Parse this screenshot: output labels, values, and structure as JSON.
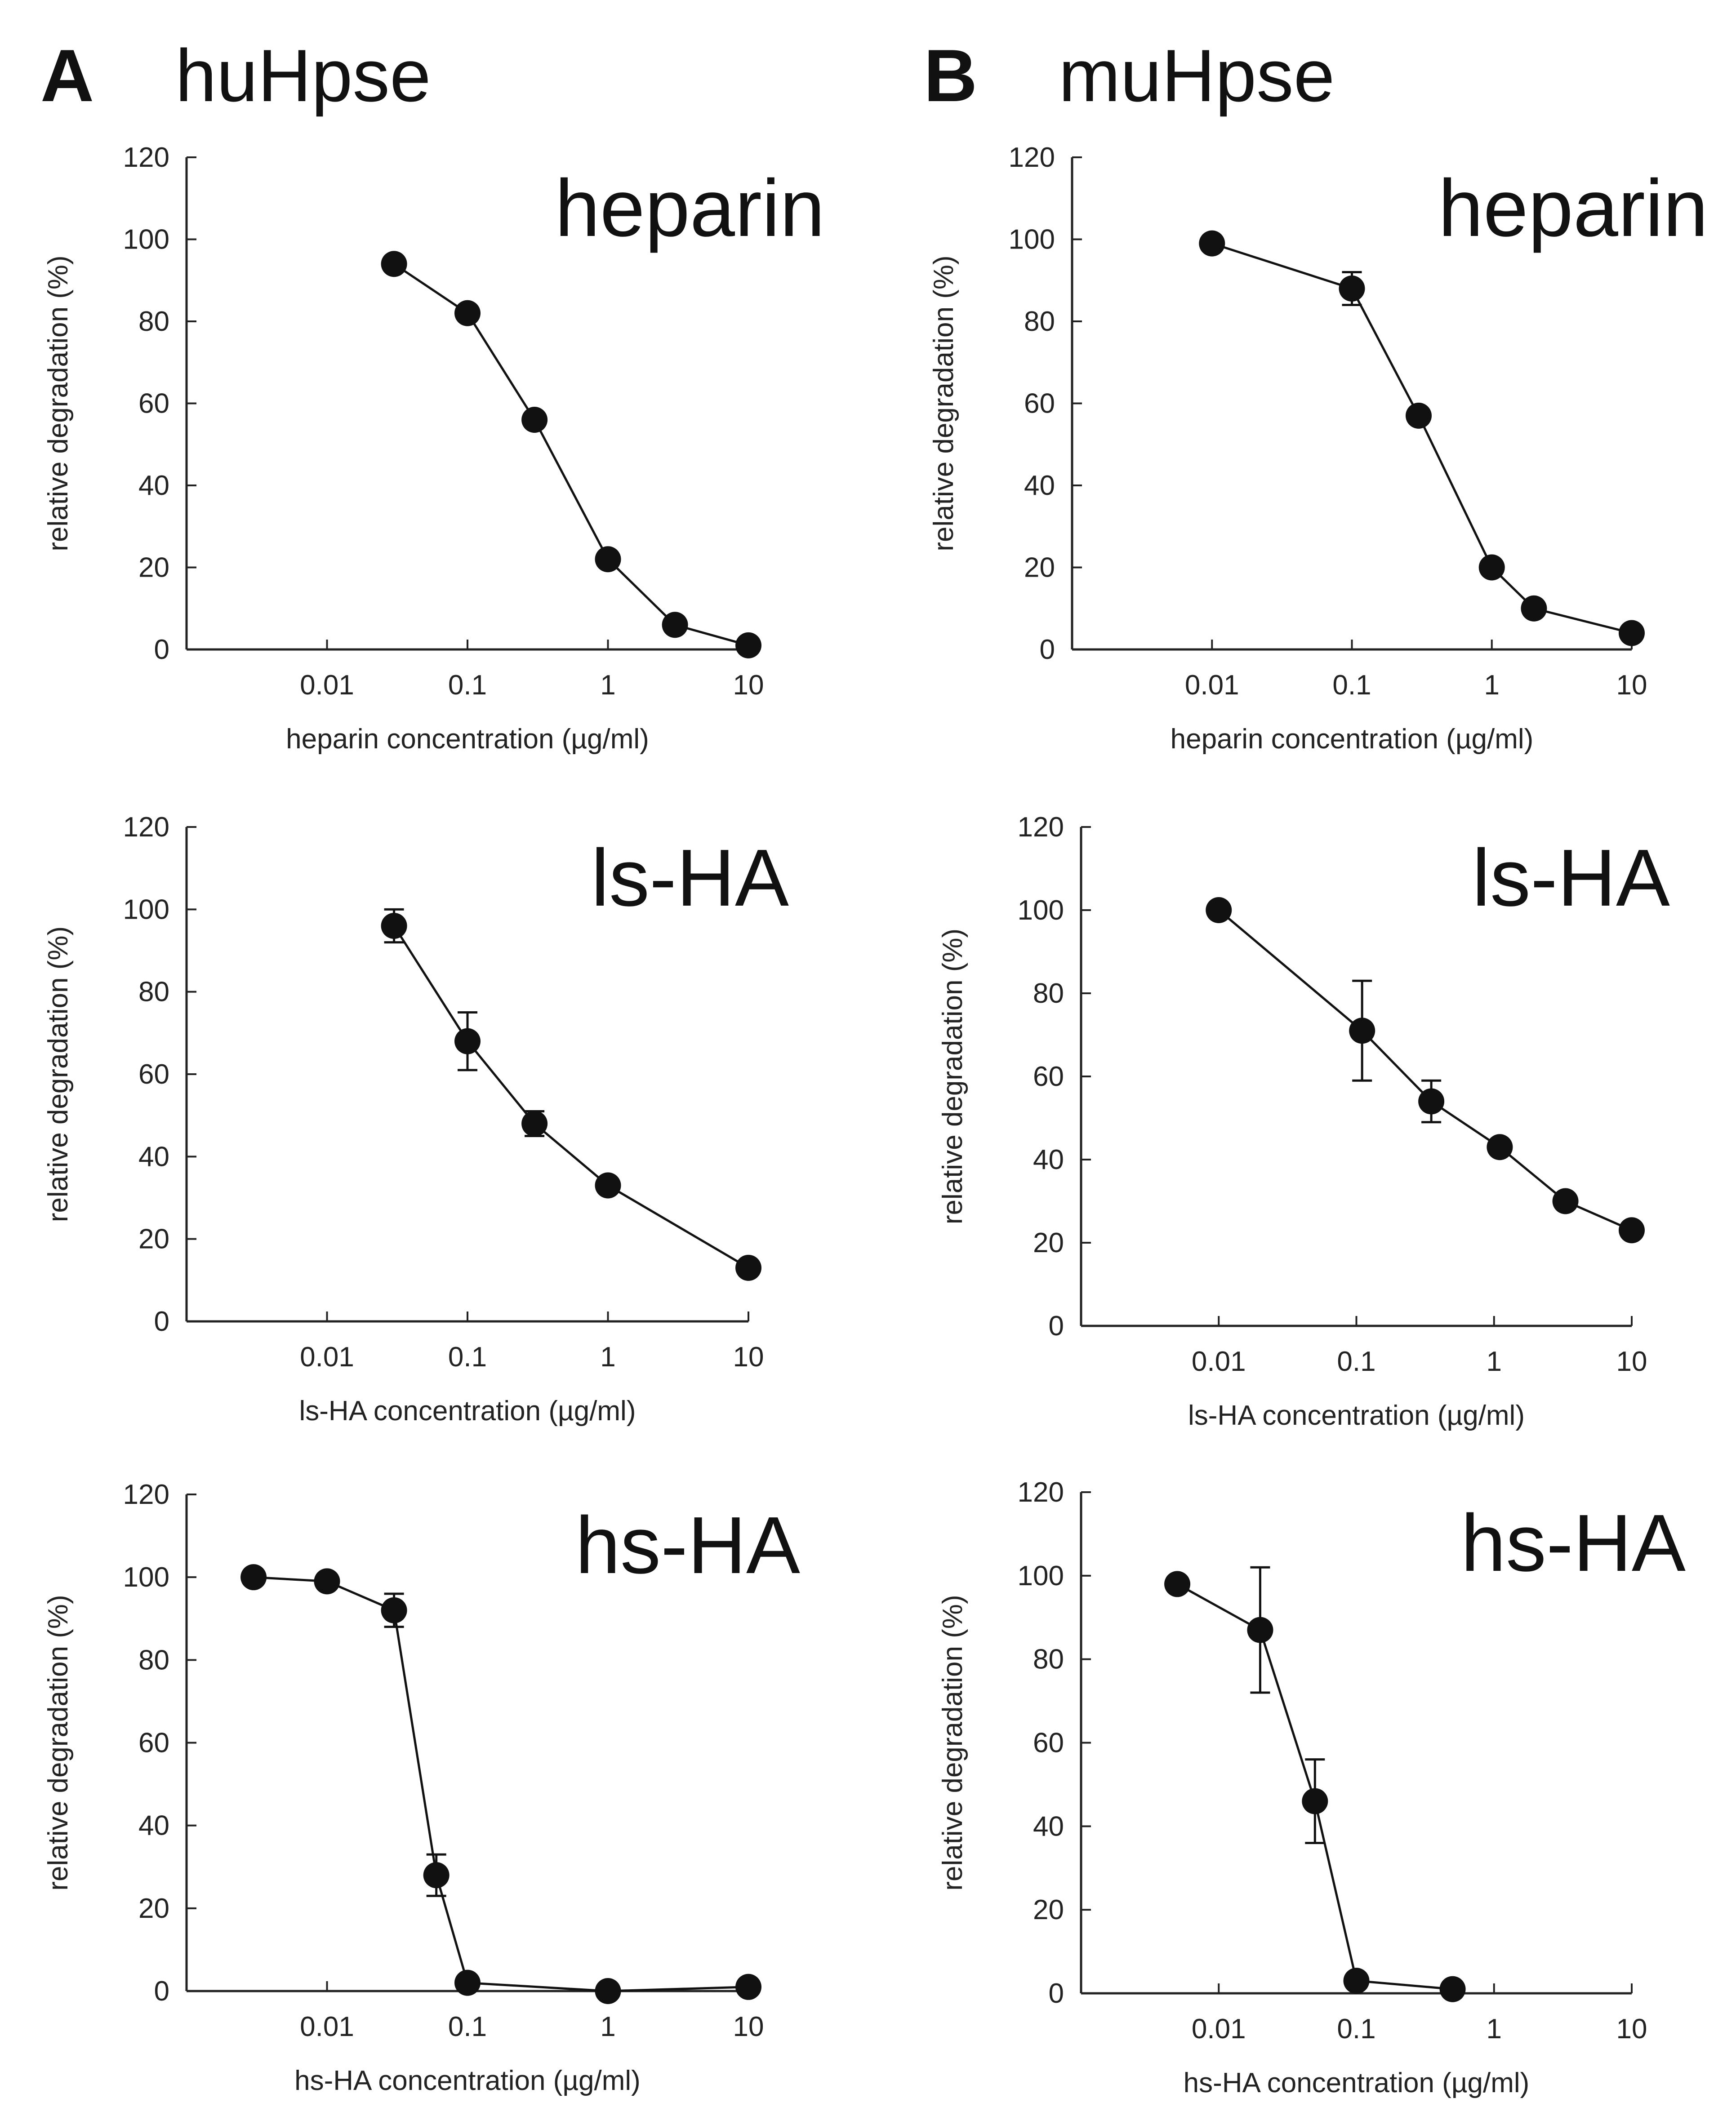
{
  "panels": [
    {
      "letter": "A",
      "title": "huHpse"
    },
    {
      "letter": "B",
      "title": "muHpse"
    }
  ],
  "chart_data": [
    {
      "type": "line",
      "panel": "A",
      "title": "heparin",
      "xlabel": "heparin concentration (µg/ml)",
      "ylabel": "relative degradation (%)",
      "xscale": "log",
      "xlim": [
        0.001,
        10
      ],
      "ylim": [
        0,
        120
      ],
      "xticks": [
        0.01,
        0.1,
        1,
        10
      ],
      "xtick_labels": [
        "0.01",
        "0.1",
        "1",
        "10"
      ],
      "yticks": [
        0,
        20,
        40,
        60,
        80,
        100,
        120
      ],
      "ytick_labels": [
        "0",
        "20",
        "40",
        "60",
        "80",
        "100",
        "120"
      ],
      "series": [
        {
          "name": "huHpse heparin",
          "x": [
            0.03,
            0.1,
            0.3,
            1,
            3,
            10
          ],
          "y": [
            94,
            82,
            56,
            22,
            6,
            1
          ],
          "err": [
            0,
            0,
            0,
            0,
            0,
            0
          ]
        }
      ]
    },
    {
      "type": "line",
      "panel": "B",
      "title": "heparin",
      "xlabel": "heparin concentration (µg/ml)",
      "ylabel": "relative degradation (%)",
      "xscale": "log",
      "xlim": [
        0.001,
        10
      ],
      "ylim": [
        0,
        120
      ],
      "xticks": [
        0.01,
        0.1,
        1,
        10
      ],
      "xtick_labels": [
        "0.01",
        "0.1",
        "1",
        "10"
      ],
      "yticks": [
        0,
        20,
        40,
        60,
        80,
        100,
        120
      ],
      "ytick_labels": [
        "0",
        "20",
        "40",
        "60",
        "80",
        "100",
        "120"
      ],
      "series": [
        {
          "name": "muHpse heparin",
          "x": [
            0.01,
            0.1,
            0.3,
            1,
            2,
            10
          ],
          "y": [
            99,
            88,
            57,
            20,
            10,
            4
          ],
          "err": [
            0,
            4,
            0,
            0,
            0,
            0
          ]
        }
      ]
    },
    {
      "type": "line",
      "panel": "A",
      "title": "ls-HA",
      "xlabel": "ls-HA concentration (µg/ml)",
      "ylabel": "relative degradation (%)",
      "xscale": "log",
      "xlim": [
        0.001,
        10
      ],
      "ylim": [
        0,
        120
      ],
      "xticks": [
        0.01,
        0.1,
        1,
        10
      ],
      "xtick_labels": [
        "0.01",
        "0.1",
        "1",
        "10"
      ],
      "yticks": [
        0,
        20,
        40,
        60,
        80,
        100,
        120
      ],
      "ytick_labels": [
        "0",
        "20",
        "40",
        "60",
        "80",
        "100",
        "120"
      ],
      "series": [
        {
          "name": "huHpse ls-HA",
          "x": [
            0.03,
            0.1,
            0.3,
            1,
            10
          ],
          "y": [
            96,
            68,
            48,
            33,
            13
          ],
          "err": [
            4,
            7,
            3,
            0,
            0
          ]
        }
      ]
    },
    {
      "type": "line",
      "panel": "B",
      "title": "ls-HA",
      "xlabel": "ls-HA concentration (µg/ml)",
      "ylabel": "relative degradation (%)",
      "xscale": "log",
      "xlim": [
        0.001,
        10
      ],
      "ylim": [
        0,
        120
      ],
      "xticks": [
        0.01,
        0.1,
        1,
        10
      ],
      "xtick_labels": [
        "0.01",
        "0.1",
        "1",
        "10"
      ],
      "yticks": [
        0,
        20,
        40,
        60,
        80,
        100,
        120
      ],
      "ytick_labels": [
        "0",
        "20",
        "40",
        "60",
        "80",
        "100",
        "120"
      ],
      "series": [
        {
          "name": "muHpse ls-HA",
          "x": [
            0.01,
            0.11,
            0.35,
            1.1,
            3.3,
            10
          ],
          "y": [
            100,
            71,
            54,
            43,
            30,
            23
          ],
          "err": [
            0,
            12,
            5,
            0,
            0,
            0
          ]
        }
      ]
    },
    {
      "type": "line",
      "panel": "A",
      "title": "hs-HA",
      "xlabel": "hs-HA concentration (µg/ml)",
      "ylabel": "relative degradation (%)",
      "xscale": "log",
      "xlim": [
        0.001,
        10
      ],
      "ylim": [
        0,
        120
      ],
      "xticks": [
        0.01,
        0.1,
        1,
        10
      ],
      "xtick_labels": [
        "0.01",
        "0.1",
        "1",
        "10"
      ],
      "yticks": [
        0,
        20,
        40,
        60,
        80,
        100,
        120
      ],
      "ytick_labels": [
        "0",
        "20",
        "40",
        "60",
        "80",
        "100",
        "120"
      ],
      "series": [
        {
          "name": "huHpse hs-HA",
          "x": [
            0.003,
            0.01,
            0.03,
            0.06,
            0.1,
            1,
            10
          ],
          "y": [
            100,
            99,
            92,
            28,
            2,
            0,
            1
          ],
          "err": [
            0,
            0,
            4,
            5,
            0,
            0,
            0
          ]
        }
      ]
    },
    {
      "type": "line",
      "panel": "B",
      "title": "hs-HA",
      "xlabel": "hs-HA concentration (µg/ml)",
      "ylabel": "relative degradation (%)",
      "xscale": "log",
      "xlim": [
        0.001,
        10
      ],
      "ylim": [
        0,
        120
      ],
      "xticks": [
        0.01,
        0.1,
        1,
        10
      ],
      "xtick_labels": [
        "0.01",
        "0.1",
        "1",
        "10"
      ],
      "yticks": [
        0,
        20,
        40,
        60,
        80,
        100,
        120
      ],
      "ytick_labels": [
        "0",
        "20",
        "40",
        "60",
        "80",
        "100",
        "120"
      ],
      "series": [
        {
          "name": "muHpse hs-HA",
          "x": [
            0.005,
            0.02,
            0.05,
            0.1,
            0.5
          ],
          "y": [
            98,
            87,
            46,
            3,
            1
          ],
          "err": [
            0,
            15,
            10,
            0,
            0
          ]
        }
      ]
    }
  ]
}
